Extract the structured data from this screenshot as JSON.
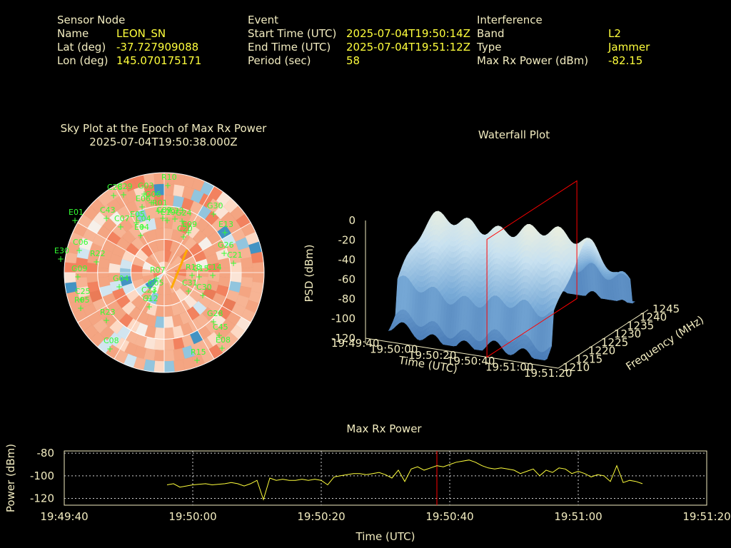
{
  "header": {
    "sensor": {
      "title": "Sensor Node",
      "name_label": "Name",
      "name_value": "LEON_SN",
      "lat_label": "Lat (deg)",
      "lat_value": "-37.727909088",
      "lon_label": "Lon (deg)",
      "lon_value": "145.070175171"
    },
    "event": {
      "title": "Event",
      "start_label": "Start Time (UTC)",
      "start_value": "2025-07-04T19:50:14Z",
      "end_label": "End Time (UTC)",
      "end_value": "2025-07-04T19:51:12Z",
      "period_label": "Period (sec)",
      "period_value": "58"
    },
    "interference": {
      "title": "Interference",
      "band_label": "Band",
      "band_value": "L2",
      "type_label": "Type",
      "type_value": "Jammer",
      "power_label": "Max Rx Power (dBm)",
      "power_value": "-82.15"
    }
  },
  "colors": {
    "label": "#f2ecc0",
    "value": "#ffff3c",
    "satellite": "#33ff33",
    "marker": "#ff0000",
    "trace": "#ffff3c"
  },
  "chart_data": [
    {
      "type": "scatter",
      "title": "Sky Plot at the Epoch of Max Rx Power",
      "subtitle": "2025-07-04T19:50:38.000Z",
      "satellites": [
        "R10",
        "G03",
        "C28",
        "G06",
        "C29",
        "E01",
        "C43",
        "E06",
        "E05",
        "R01",
        "E19",
        "C33",
        "C07",
        "C04",
        "G30",
        "C09",
        "E04",
        "C06",
        "C20",
        "G24",
        "E09",
        "E13",
        "G26",
        "R22",
        "C21",
        "G09",
        "E30",
        "G04",
        "C31",
        "C25",
        "R05",
        "G05",
        "C14",
        "R23",
        "G28",
        "C45",
        "C08",
        "E08",
        "R15",
        "C12",
        "C30",
        "C23",
        "R07",
        "R18",
        "G15"
      ]
    },
    {
      "type": "area",
      "title": "Waterfall Plot",
      "xlabel": "Time (UTC)",
      "ylabel": "Frequency (MHz)",
      "zlabel": "PSD (dBm)",
      "x_ticks": [
        "19:49:40",
        "19:50:00",
        "19:50:20",
        "19:50:40",
        "19:51:00",
        "19:51:20"
      ],
      "y_ticks": [
        "1210",
        "1215",
        "1220",
        "1225",
        "1230",
        "1235",
        "1240",
        "1245"
      ],
      "z_ticks": [
        "0",
        "-20",
        "-40",
        "-60",
        "-80",
        "-100",
        "-120"
      ],
      "zlim": [
        -120,
        0
      ],
      "marker_time": "19:50:38"
    },
    {
      "type": "line",
      "title": "Max Rx Power",
      "xlabel": "Time (UTC)",
      "ylabel": "Power (dBm)",
      "x_ticks": [
        "19:49:40",
        "19:50:00",
        "19:50:20",
        "19:50:40",
        "19:51:00",
        "19:51:20"
      ],
      "y_ticks": [
        "-80",
        "-100",
        "-120"
      ],
      "xlim": [
        0,
        100
      ],
      "ylim": [
        -126,
        -78
      ],
      "marker_time": "19:50:38",
      "series": [
        {
          "x": [
            16,
            17,
            18,
            20,
            22,
            23,
            25,
            26,
            27,
            28,
            29,
            30,
            31,
            32,
            33,
            34,
            35,
            36,
            37,
            38,
            39,
            40,
            41,
            42,
            43,
            44,
            45,
            46,
            47,
            48,
            49,
            50,
            51,
            52,
            53,
            54,
            55,
            56,
            57,
            58,
            59,
            60,
            61,
            62,
            63,
            64,
            65,
            66,
            67,
            68,
            69,
            70,
            71,
            72,
            73,
            74,
            75,
            76,
            77,
            78,
            79,
            80,
            81,
            82,
            83,
            84,
            85,
            86,
            87,
            88,
            89,
            90
          ],
          "y": [
            -108,
            -107,
            -110,
            -108,
            -107,
            -108,
            -107,
            -106,
            -107,
            -109,
            -107,
            -104,
            -121,
            -102,
            -104,
            -103,
            -104,
            -104,
            -103,
            -104,
            -103,
            -104,
            -108,
            -101,
            -100,
            -99,
            -98,
            -98,
            -99,
            -98,
            -97,
            -99,
            -102,
            -95,
            -105,
            -94,
            -92,
            -95,
            -93,
            -91,
            -92,
            -90,
            -88,
            -87,
            -86,
            -88,
            -91,
            -93,
            -94,
            -93,
            -94,
            -95,
            -98,
            -96,
            -94,
            -100,
            -95,
            -97,
            -93,
            -94,
            -98,
            -96,
            -98,
            -101,
            -99,
            -100,
            -105,
            -91,
            -106,
            -104,
            -105,
            -107
          ]
        }
      ]
    }
  ]
}
